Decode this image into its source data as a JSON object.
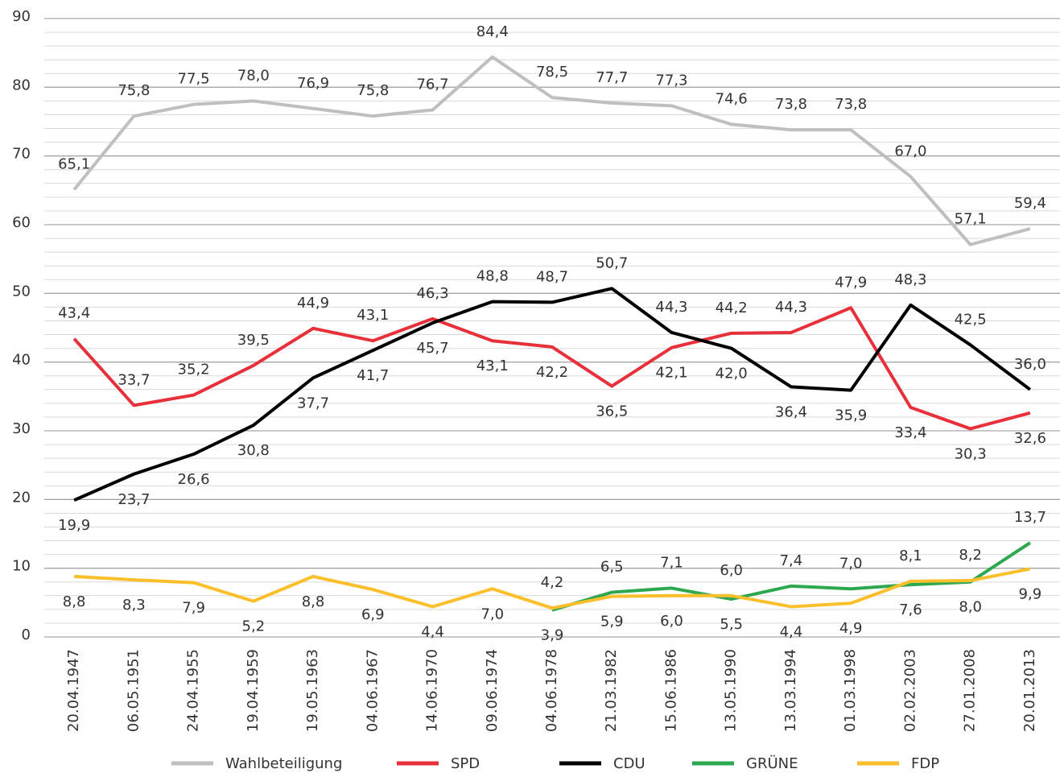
{
  "chart_data": {
    "type": "line",
    "categories": [
      "20.04.1947",
      "06.05.1951",
      "24.04.1955",
      "19.04.1959",
      "19.05.1963",
      "04.06.1967",
      "14.06.1970",
      "09.06.1974",
      "04.06.1978",
      "21.03.1982",
      "15.06.1986",
      "13.05.1990",
      "13.03.1994",
      "01.03.1998",
      "02.02.2003",
      "27.01.2008",
      "20.01.2013"
    ],
    "series": [
      {
        "name": "Wahlbeteiligung",
        "color": "#bfbfbf",
        "values": [
          65.1,
          75.8,
          77.5,
          78.0,
          76.9,
          75.8,
          76.7,
          84.4,
          78.5,
          77.7,
          77.3,
          74.6,
          73.8,
          73.8,
          67.0,
          57.1,
          59.4
        ],
        "value_labels": [
          "65,1",
          "75,8",
          "77,5",
          "78,0",
          "76,9",
          "75,8",
          "76,7",
          "84,4",
          "78,5",
          "77,7",
          "77,3",
          "74,6",
          "73,8",
          "73,8",
          "67,0",
          "57,1",
          "59,4"
        ]
      },
      {
        "name": "SPD",
        "color": "#e8303a",
        "values": [
          43.4,
          33.7,
          35.2,
          39.5,
          44.9,
          43.1,
          46.3,
          43.1,
          42.2,
          36.5,
          42.1,
          44.2,
          44.3,
          47.9,
          33.4,
          30.3,
          32.6
        ],
        "value_labels": [
          "43,4",
          "33,7",
          "35,2",
          "39,5",
          "44,9",
          "43,1",
          "46,3",
          "43,1",
          "42,2",
          "36,5",
          "42,1",
          "44,2",
          "44,3",
          "47,9",
          "33,4",
          "30,3",
          "32,6"
        ]
      },
      {
        "name": "CDU",
        "color": "#000000",
        "values": [
          19.9,
          23.7,
          26.6,
          30.8,
          37.7,
          41.7,
          45.7,
          48.8,
          48.7,
          50.7,
          44.3,
          42.0,
          36.4,
          35.9,
          48.3,
          42.5,
          36.0
        ],
        "value_labels": [
          "19,9",
          "23,7",
          "26,6",
          "30,8",
          "37,7",
          "41,7",
          "45,7",
          "48,8",
          "48,7",
          "50,7",
          "44,3",
          "42,0",
          "36,4",
          "35,9",
          "48,3",
          "42,5",
          "36,0"
        ]
      },
      {
        "name": "GRÜNE",
        "color": "#2ea84f",
        "values": [
          null,
          null,
          null,
          null,
          null,
          null,
          null,
          null,
          3.9,
          6.5,
          7.1,
          5.5,
          7.4,
          7.0,
          7.6,
          8.0,
          13.7
        ],
        "value_labels": [
          null,
          null,
          null,
          null,
          null,
          null,
          null,
          null,
          "3,9",
          "6,5",
          "7,1",
          "5,5",
          "7,4",
          "7,0",
          "7,6",
          "8,0",
          "13,7"
        ]
      },
      {
        "name": "FDP",
        "color": "#fbbf2c",
        "values": [
          8.8,
          8.3,
          7.9,
          5.2,
          8.8,
          6.9,
          4.4,
          7.0,
          4.2,
          5.9,
          6.0,
          6.0,
          4.4,
          4.9,
          8.1,
          8.2,
          9.9
        ],
        "value_labels": [
          "8,8",
          "8,3",
          "7,9",
          "5,2",
          "8,8",
          "6,9",
          "4,4",
          "7,0",
          "4,2",
          "5,9",
          "6,0",
          "6,0",
          "4,4",
          "4,9",
          "8,1",
          "8,2",
          "9,9"
        ]
      }
    ],
    "ylim": [
      0,
      90
    ],
    "yticks": [
      0,
      10,
      20,
      30,
      40,
      50,
      60,
      70,
      80,
      90
    ],
    "minor_yticks": [
      2,
      4,
      6,
      8,
      12,
      14,
      16,
      18,
      22,
      24,
      26,
      28,
      32,
      34,
      36,
      38,
      42,
      44,
      46,
      48,
      52,
      54,
      56,
      58,
      62,
      64,
      66,
      68,
      72,
      74,
      76,
      78,
      82,
      84,
      86,
      88
    ],
    "grid": true,
    "legend": "bottom"
  }
}
